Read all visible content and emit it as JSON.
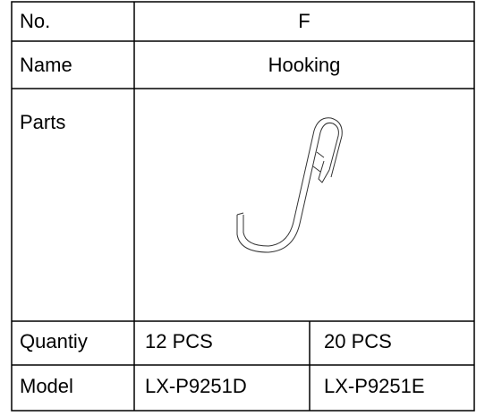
{
  "table": {
    "rows": [
      [
        "No.",
        "F"
      ],
      [
        "Name",
        "Hooking"
      ],
      [
        "Parts"
      ],
      [
        "Quantiy",
        "12 PCS",
        "20 PCS"
      ],
      [
        "Model",
        "LX-P9251D",
        "LX-P9251E"
      ]
    ]
  }
}
